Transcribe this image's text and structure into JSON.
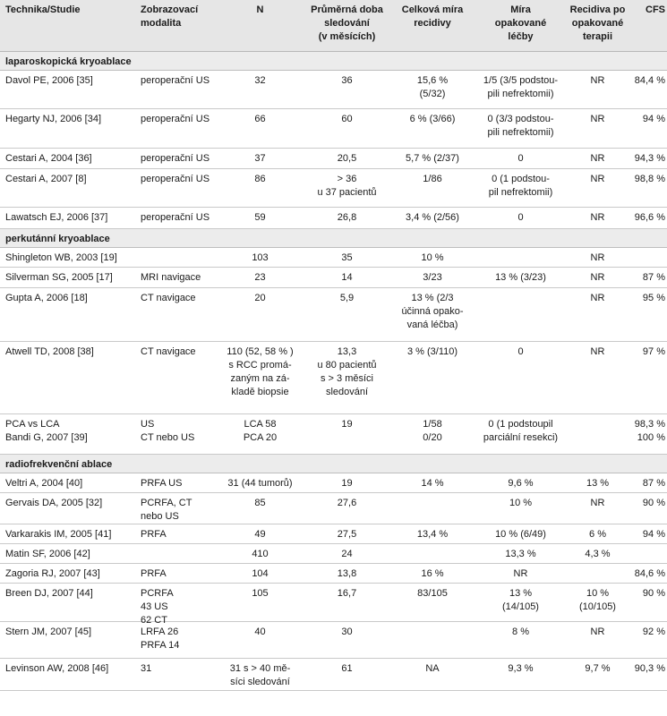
{
  "headers": [
    "Technika/Studie",
    "Zobrazovací\nmodalita",
    "N",
    "Průměrná doba\nsledování\n(v měsících)",
    "Celková míra\nrecidivy",
    "Míra\nopakované\nléčby",
    "Recidiva po\nopakované\nterapii",
    "CFS"
  ],
  "sections": [
    {
      "title": "laparoskopická kryoablace",
      "rows": [
        [
          "Davol PE, 2006 [35]",
          "peroperační US",
          "32",
          "36",
          "15,6 %\n(5/32)",
          "1/5 (3/5  podstou-\npili nefrektomii)",
          "NR",
          "84,4 %"
        ],
        [
          "Hegarty NJ, 2006 [34]",
          "peroperační US",
          "66",
          "60",
          "6 % (3/66)",
          "0 (3/3 podstou-\npili nefrektomii)",
          "NR",
          "94 %"
        ],
        [
          "Cestari A, 2004 [36]",
          "peroperační US",
          "37",
          "20,5",
          "5,7 % (2/37)",
          "0",
          "NR",
          "94,3 %"
        ],
        [
          "Cestari A, 2007 [8]",
          "peroperační US",
          "86",
          "> 36\nu 37 pacientů",
          "1/86",
          "0 (1 podstou-\npil nefrektomii)",
          "NR",
          "98,8 %"
        ],
        [
          "Lawatsch EJ, 2006 [37]",
          "peroperační US",
          "59",
          "26,8",
          "3,4 % (2/56)",
          "0",
          "NR",
          "96,6 %"
        ]
      ]
    },
    {
      "title": "perkutánní kryoablace",
      "rows": [
        [
          "Shingleton WB, 2003 [19]",
          "",
          "103",
          "35",
          "10 %",
          "",
          "NR",
          ""
        ],
        [
          "Silverman SG, 2005 [17]",
          "MRI navigace",
          "23",
          "14",
          "3/23",
          "13 % (3/23)",
          "NR",
          "87 %"
        ],
        [
          "Gupta A, 2006 [18]",
          "CT navigace",
          "20",
          "5,9",
          "13 % (2/3\núčinná opako-\nvaná léčba)",
          "",
          "NR",
          "95 %"
        ],
        [
          "Atwell TD, 2008 [38]",
          "CT navigace",
          "110 (52, 58 % )\ns RCC promá-\nzaným na zá-\nkladě biopsie",
          "13,3\nu 80 pacientů\ns > 3 měsíci\nsledování",
          "3 % (3/110)",
          "0",
          "NR",
          "97 %"
        ],
        [
          "PCA vs LCA\nBandi G, 2007 [39]",
          "US\nCT nebo US",
          "LCA 58\nPCA 20",
          "19",
          "1/58\n0/20",
          "0 (1 podstoupil\nparciální resekci)",
          "",
          "98,3 %\n100 %"
        ]
      ]
    },
    {
      "title": "radiofrekvenční ablace",
      "rows": [
        [
          "Veltri A, 2004 [40]",
          "PRFA US",
          "31 (44 tumorů)",
          "19",
          "14 %",
          "9,6 %",
          "13 %",
          "87 %"
        ],
        [
          "Gervais DA, 2005 [32]",
          "PCRFA, CT\nnebo US",
          "85",
          "27,6",
          "",
          "10 %",
          "NR",
          "90 %"
        ],
        [
          "Varkarakis IM, 2005 [41]",
          "PRFA",
          "49",
          "27,5",
          "13,4 %",
          "10 % (6/49)",
          "6 %",
          "94 %"
        ],
        [
          "Matin SF, 2006 [42]",
          "",
          "410",
          "24",
          "",
          "13,3 %",
          "4,3 %",
          ""
        ],
        [
          "Zagoria RJ, 2007 [43]",
          "PRFA",
          "104",
          "13,8",
          "16 %",
          "NR",
          "",
          "84,6 %"
        ],
        [
          "Breen DJ, 2007 [44]",
          "PCRFA\n43 US\n62 CT",
          "105",
          "16,7",
          "83/105",
          "13 %\n(14/105)",
          "10 %\n(10/105)",
          "90 %"
        ],
        [
          "Stern JM, 2007 [45]",
          "LRFA 26\nPRFA 14",
          "40",
          "30",
          "",
          "8 %",
          "NR",
          "92 %"
        ],
        [
          "Levinson AW, 2008 [46]",
          "31",
          "31 s > 40 mě-\nsíci sledování",
          "61",
          "NA",
          "9,3 %",
          "9,7 %",
          "90,3 %"
        ]
      ]
    }
  ]
}
